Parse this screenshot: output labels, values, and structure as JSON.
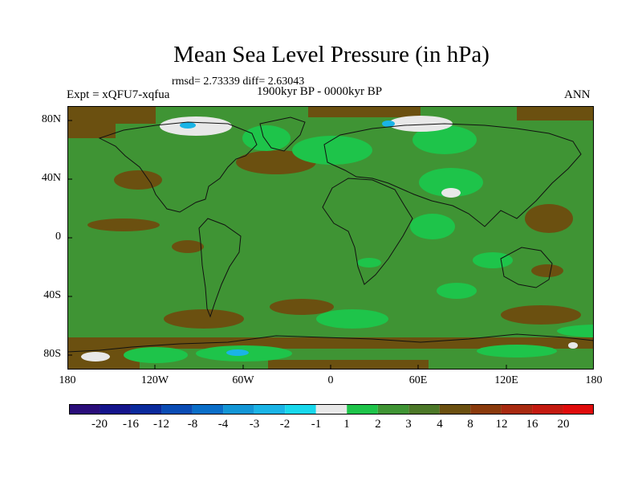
{
  "figure": {
    "title": "Mean Sea Level Pressure (in hPa)",
    "stats": "rmsd= 2.73339 diff= 2.63043",
    "experiment": "Expt = xQFU7-xqfua",
    "period": "1900kyr BP - 0000kyr BP",
    "season": "ANN"
  },
  "axes": {
    "y_ticks": [
      "80N",
      "40N",
      "0",
      "40S",
      "80S"
    ],
    "x_ticks": [
      "180",
      "120W",
      "60W",
      "0",
      "60E",
      "120E",
      "180"
    ]
  },
  "colorbar": {
    "labels": [
      "-20",
      "-16",
      "-12",
      "-8",
      "-4",
      "-3",
      "-2",
      "-1",
      "1",
      "2",
      "3",
      "4",
      "8",
      "12",
      "16",
      "20"
    ],
    "colors": [
      "#2a0d7a",
      "#14148c",
      "#0a2a9c",
      "#0a4cb4",
      "#0a6ec8",
      "#1296d6",
      "#1ab4e6",
      "#18d8ec",
      "#e8e8e8",
      "#1ec44a",
      "#3f9434",
      "#4c7828",
      "#6b5010",
      "#8a3a0c",
      "#a82a10",
      "#c41a10",
      "#e00c0c"
    ]
  },
  "palette": {
    "ocean_base": "#3f9434",
    "land_base": "#4c7828",
    "positive_high": "#6b5010",
    "lower": "#1ec44a",
    "near_zero": "#e8e8e8",
    "negative": "#1ab4e6",
    "coast": "#111111"
  }
}
